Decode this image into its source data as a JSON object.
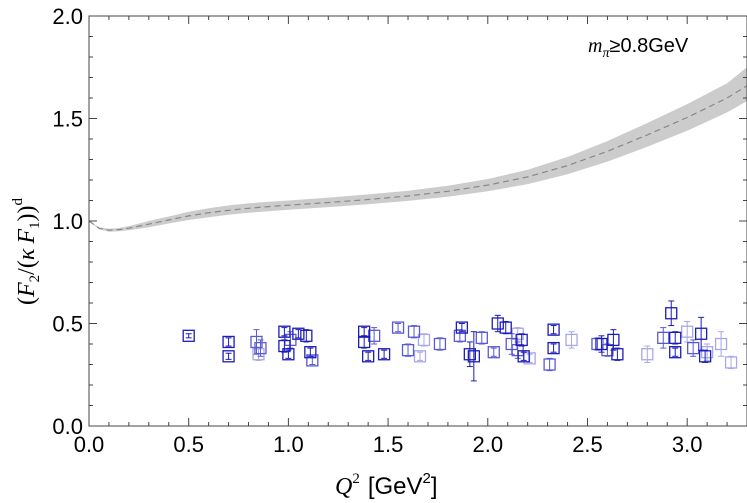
{
  "chart_data": {
    "type": "scatter",
    "title": "",
    "annotation": "m_π≥0.8GeV",
    "annotation_parts": {
      "m": "m",
      "sub": "π",
      "rest": "≥0.8GeV"
    },
    "ylabel_parts": {
      "open": "(",
      "F2": "F",
      "F2sub": "2",
      "mid": "/(",
      "kappa": "κ",
      "F1": "F",
      "F1sub": "1",
      "close": "))",
      "sup": "d"
    },
    "xlabel_parts": {
      "Q": "Q",
      "sup": "2",
      "unit": "[GeV",
      "unit_sup": "2",
      "unit_close": "]"
    },
    "xlim": [
      0,
      3.3
    ],
    "ylim": [
      0,
      2.0
    ],
    "xticks": [
      0.0,
      0.5,
      1.0,
      1.5,
      2.0,
      2.5,
      3.0
    ],
    "xtick_labels": [
      "0.0",
      "0.5",
      "1.0",
      "1.5",
      "2.0",
      "2.5",
      "3.0"
    ],
    "yticks": [
      0.0,
      0.5,
      1.0,
      1.5,
      2.0
    ],
    "ytick_labels": [
      "0.0",
      "0.5",
      "1.0",
      "1.5",
      "2.0"
    ],
    "colors": {
      "band": "#cccccc",
      "curve": "#888888",
      "dark": "#1c1cb8",
      "mid": "#5a5ad2",
      "light": "#a8a8e6"
    },
    "curve": {
      "x": [
        0.0,
        0.05,
        0.1,
        0.15,
        0.2,
        0.3,
        0.4,
        0.5,
        0.6,
        0.7,
        0.8,
        0.9,
        1.0,
        1.2,
        1.4,
        1.6,
        1.8,
        2.0,
        2.2,
        2.4,
        2.6,
        2.8,
        3.0,
        3.2,
        3.3
      ],
      "y": [
        1.0,
        0.965,
        0.955,
        0.958,
        0.965,
        0.985,
        1.005,
        1.025,
        1.04,
        1.052,
        1.062,
        1.07,
        1.077,
        1.09,
        1.105,
        1.122,
        1.145,
        1.175,
        1.215,
        1.27,
        1.34,
        1.42,
        1.505,
        1.6,
        1.66
      ],
      "band_lower": [
        1.0,
        0.96,
        0.948,
        0.95,
        0.955,
        0.97,
        0.988,
        1.005,
        1.018,
        1.03,
        1.04,
        1.048,
        1.055,
        1.068,
        1.082,
        1.098,
        1.118,
        1.145,
        1.18,
        1.228,
        1.29,
        1.362,
        1.44,
        1.53,
        1.585
      ],
      "band_upper": [
        1.0,
        0.97,
        0.962,
        0.966,
        0.975,
        1.0,
        1.022,
        1.045,
        1.062,
        1.076,
        1.086,
        1.094,
        1.1,
        1.114,
        1.13,
        1.148,
        1.172,
        1.205,
        1.25,
        1.312,
        1.39,
        1.478,
        1.57,
        1.672,
        1.75
      ]
    },
    "series": [
      {
        "name": "dark",
        "points": [
          [
            0.5,
            0.44,
            0.01
          ],
          [
            0.7,
            0.41,
            0.02
          ],
          [
            0.7,
            0.34,
            0.015
          ],
          [
            0.98,
            0.46,
            0.02
          ],
          [
            0.98,
            0.39,
            0.03
          ],
          [
            1.0,
            0.35,
            0.02
          ],
          [
            1.05,
            0.45,
            0.02
          ],
          [
            1.09,
            0.44,
            0.03
          ],
          [
            1.11,
            0.36,
            0.02
          ],
          [
            1.38,
            0.46,
            0.02
          ],
          [
            1.38,
            0.41,
            0.03
          ],
          [
            1.4,
            0.34,
            0.02
          ],
          [
            1.48,
            0.35,
            0.02
          ],
          [
            1.87,
            0.48,
            0.02
          ],
          [
            1.91,
            0.35,
            0.06
          ],
          [
            1.93,
            0.34,
            0.12
          ],
          [
            2.05,
            0.5,
            0.04
          ],
          [
            2.09,
            0.48,
            0.03
          ],
          [
            2.17,
            0.42,
            0.03
          ],
          [
            2.18,
            0.34,
            0.02
          ],
          [
            2.33,
            0.47,
            0.02
          ],
          [
            2.33,
            0.38,
            0.02
          ],
          [
            2.57,
            0.4,
            0.04
          ],
          [
            2.63,
            0.42,
            0.05
          ],
          [
            2.65,
            0.35,
            0.03
          ],
          [
            2.92,
            0.55,
            0.06
          ],
          [
            2.94,
            0.43,
            0.03
          ],
          [
            2.94,
            0.36,
            0.02
          ],
          [
            3.07,
            0.45,
            0.08
          ],
          [
            3.09,
            0.34,
            0.03
          ]
        ]
      },
      {
        "name": "mid",
        "points": [
          [
            0.84,
            0.41,
            0.06
          ],
          [
            0.86,
            0.38,
            0.04
          ],
          [
            1.01,
            0.42,
            0.04
          ],
          [
            1.12,
            0.32,
            0.02
          ],
          [
            1.43,
            0.44,
            0.04
          ],
          [
            1.55,
            0.48,
            0.02
          ],
          [
            1.6,
            0.37,
            0.03
          ],
          [
            1.63,
            0.46,
            0.03
          ],
          [
            1.76,
            0.4,
            0.03
          ],
          [
            1.86,
            0.44,
            0.03
          ],
          [
            1.97,
            0.43,
            0.03
          ],
          [
            2.03,
            0.36,
            0.02
          ],
          [
            2.12,
            0.4,
            0.05
          ],
          [
            2.15,
            0.37,
            0.04
          ],
          [
            2.31,
            0.3,
            0.03
          ],
          [
            2.55,
            0.4,
            0.03
          ],
          [
            2.6,
            0.37,
            0.03
          ],
          [
            2.88,
            0.43,
            0.05
          ],
          [
            3.03,
            0.38,
            0.04
          ]
        ]
      },
      {
        "name": "light",
        "points": [
          [
            0.85,
            0.35,
            0.03
          ],
          [
            1.66,
            0.34,
            0.02
          ],
          [
            1.68,
            0.42,
            0.03
          ],
          [
            2.15,
            0.45,
            0.03
          ],
          [
            2.21,
            0.33,
            0.02
          ],
          [
            2.42,
            0.42,
            0.04
          ],
          [
            2.8,
            0.35,
            0.04
          ],
          [
            3.0,
            0.46,
            0.05
          ],
          [
            3.1,
            0.36,
            0.04
          ],
          [
            3.17,
            0.4,
            0.06
          ],
          [
            3.22,
            0.31,
            0.03
          ]
        ]
      }
    ]
  }
}
